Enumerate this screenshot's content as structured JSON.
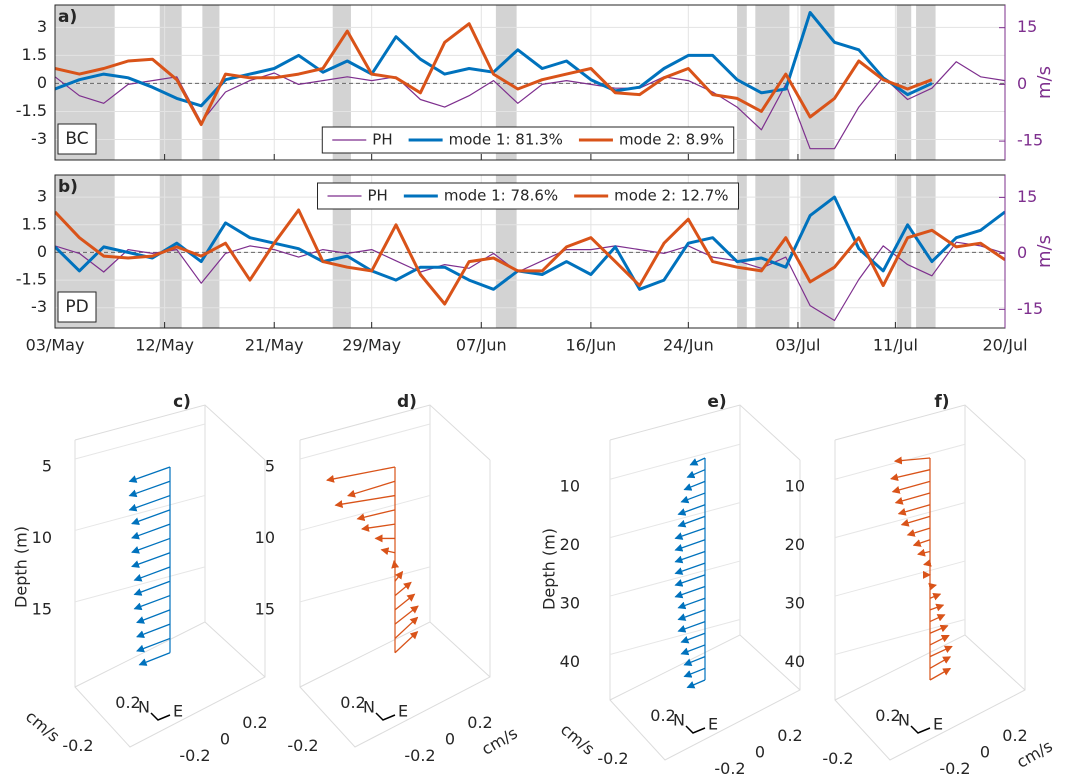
{
  "chart_data": [
    {
      "type": "line",
      "panel_label": "a)",
      "site": "BC",
      "xtick_labels": false,
      "legend": "lower center",
      "grid": true,
      "xlim": [
        0,
        78
      ],
      "xticks": [
        0,
        9,
        18,
        26,
        35,
        44,
        52,
        61,
        69,
        78
      ],
      "ylim": [
        -4.1,
        4.2
      ],
      "yticks": [
        -3,
        -1.5,
        0,
        1.5,
        3
      ],
      "y2lim": [
        -20,
        21
      ],
      "y2ticks": [
        -15,
        0,
        15
      ],
      "y2label": "m/s",
      "shaded_periods": [
        [
          0,
          4.9
        ],
        [
          8.6,
          10.4
        ],
        [
          12.1,
          13.5
        ],
        [
          22.8,
          24.3
        ],
        [
          36.2,
          37.9
        ],
        [
          56,
          56.8
        ],
        [
          57.5,
          60.3
        ],
        [
          61.2,
          64
        ],
        [
          69.1,
          70.3
        ],
        [
          70.7,
          72.3
        ]
      ],
      "x": [
        0,
        2,
        4,
        6,
        8,
        10,
        12,
        14,
        16,
        18,
        20,
        22,
        24,
        26,
        28,
        30,
        32,
        34,
        36,
        38,
        40,
        42,
        44,
        46,
        48,
        50,
        52,
        54,
        56,
        58,
        60,
        62,
        64,
        66,
        68,
        70,
        72,
        74,
        76,
        78
      ],
      "series": [
        {
          "name": "PH",
          "color": "#7e2f8e",
          "axis": "y2",
          "width": 1.2,
          "values": [
            2,
            -3,
            -5,
            0,
            1,
            2,
            -10,
            -2,
            1,
            3,
            0,
            1,
            2,
            1,
            2,
            -4,
            -6,
            -3,
            1,
            -5,
            0,
            1,
            0,
            -1,
            -1,
            2,
            1,
            -2,
            -6,
            -12,
            0,
            -17,
            -17,
            -6,
            2,
            -4,
            -1,
            6,
            2,
            1
          ]
        },
        {
          "name": "mode 1: 81.3%",
          "color": "#0072bd",
          "width": 3,
          "values": [
            -0.3,
            0.2,
            0.5,
            0.3,
            -0.2,
            -0.8,
            -1.2,
            0.2,
            0.5,
            0.8,
            1.5,
            0.6,
            1.2,
            0.5,
            2.5,
            1.3,
            0.5,
            0.8,
            0.6,
            1.8,
            0.8,
            1.2,
            0.2,
            -0.4,
            -0.2,
            0.8,
            1.5,
            1.5,
            0.2,
            -0.5,
            -0.3,
            3.8,
            2.2,
            1.8,
            0.3,
            -0.6,
            0,
            null,
            null,
            null
          ]
        },
        {
          "name": "mode 2: 8.9%",
          "color": "#d95319",
          "width": 3,
          "values": [
            0.8,
            0.5,
            0.8,
            1.2,
            1.3,
            0.2,
            -2.2,
            0.5,
            0.3,
            0.3,
            0.5,
            0.8,
            2.8,
            0.5,
            0.3,
            -0.5,
            2.2,
            3.2,
            0.5,
            -0.3,
            0.2,
            0.5,
            0.8,
            -0.5,
            -0.6,
            0.3,
            0.8,
            -0.6,
            -0.8,
            -1.5,
            0.5,
            -1.8,
            -0.8,
            1.2,
            0.2,
            -0.3,
            0.2,
            null,
            null,
            null
          ]
        }
      ]
    },
    {
      "type": "line",
      "panel_label": "b)",
      "site": "PD",
      "xtick_labels": true,
      "legend": "upper center",
      "grid": true,
      "xlim": [
        0,
        78
      ],
      "xticks": [
        {
          "value": 0,
          "label": "03/May"
        },
        {
          "value": 9,
          "label": "12/May"
        },
        {
          "value": 18,
          "label": "21/May"
        },
        {
          "value": 26,
          "label": "29/May"
        },
        {
          "value": 35,
          "label": "07/Jun"
        },
        {
          "value": 44,
          "label": "16/Jun"
        },
        {
          "value": 52,
          "label": "24/Jun"
        },
        {
          "value": 61,
          "label": "03/Jul"
        },
        {
          "value": 69,
          "label": "11/Jul"
        },
        {
          "value": 78,
          "label": "20/Jul"
        }
      ],
      "ylim": [
        -4.1,
        4.2
      ],
      "yticks": [
        -3,
        -1.5,
        0,
        1.5,
        3
      ],
      "y2lim": [
        -20,
        21
      ],
      "y2ticks": [
        -15,
        0,
        15
      ],
      "y2label": "m/s",
      "shaded_periods": [
        [
          0,
          4.9
        ],
        [
          8.6,
          10.4
        ],
        [
          12.1,
          13.5
        ],
        [
          22.8,
          24.3
        ],
        [
          36.2,
          37.9
        ],
        [
          56,
          56.8
        ],
        [
          57.5,
          60.3
        ],
        [
          61.2,
          64
        ],
        [
          69.1,
          70.3
        ],
        [
          70.7,
          72.3
        ]
      ],
      "x": [
        0,
        2,
        4,
        6,
        8,
        10,
        12,
        14,
        16,
        18,
        20,
        22,
        24,
        26,
        28,
        30,
        32,
        34,
        36,
        38,
        40,
        42,
        44,
        46,
        48,
        50,
        52,
        54,
        56,
        58,
        60,
        62,
        64,
        66,
        68,
        70,
        72,
        74,
        76,
        78
      ],
      "series": [
        {
          "name": "PH",
          "color": "#7e2f8e",
          "axis": "y2",
          "width": 1.2,
          "values": [
            2,
            0,
            -5,
            1,
            0,
            1,
            -8,
            0,
            2,
            1,
            -1,
            1,
            0,
            1,
            -2,
            -5,
            -3,
            -4,
            0,
            -5,
            -2,
            1,
            1,
            2,
            1,
            0,
            2,
            -1,
            -2,
            -4,
            -1,
            -14,
            -18,
            -7,
            2,
            -3,
            -6,
            3,
            2,
            0
          ]
        },
        {
          "name": "mode 1: 78.6%",
          "color": "#0072bd",
          "width": 3,
          "values": [
            0.3,
            -1,
            0.3,
            0,
            -0.3,
            0.5,
            -0.5,
            1.6,
            0.8,
            0.5,
            0.2,
            -0.5,
            -0.2,
            -1,
            -1.5,
            -0.8,
            -0.8,
            -1.5,
            -2,
            -1,
            -1.2,
            -0.5,
            -1.2,
            0.3,
            -2,
            -1.5,
            0.5,
            0.8,
            -0.5,
            -0.3,
            -0.8,
            2,
            3,
            0.2,
            -1,
            1.5,
            -0.5,
            0.8,
            1.2,
            2.2
          ]
        },
        {
          "name": "mode 2: 12.7%",
          "color": "#d95319",
          "width": 3,
          "values": [
            2.2,
            0.8,
            -0.2,
            -0.3,
            -0.2,
            0.3,
            -0.2,
            0.5,
            -1.5,
            0.5,
            2.3,
            -0.5,
            -0.8,
            -1,
            1.5,
            -1.2,
            -2.8,
            -0.5,
            -0.3,
            -1,
            -1,
            0.3,
            0.8,
            -0.5,
            -1.8,
            0.5,
            1.8,
            -0.5,
            -0.8,
            -1,
            0.8,
            -1.6,
            -0.8,
            0.8,
            -1.8,
            0.8,
            1.2,
            0.3,
            0.5,
            -0.4
          ]
        }
      ]
    },
    {
      "type": "quiver3d",
      "title": "c)",
      "color": "#0072bd",
      "zlabel": "Depth (m)",
      "nlabel": "cm/s",
      "zlim": [
        5,
        19
      ],
      "zticks": [
        5,
        10,
        15
      ],
      "eticks": [
        -0.2,
        0,
        0.2
      ],
      "nticks": [
        -0.2,
        0.2
      ],
      "compass": {
        "north": "N",
        "east": "E"
      },
      "depth": [
        5,
        6,
        7,
        8,
        9,
        10,
        11,
        12,
        13,
        14,
        15,
        16,
        17,
        18
      ],
      "east": [
        -0.18,
        -0.18,
        -0.18,
        -0.17,
        -0.17,
        -0.17,
        -0.17,
        -0.16,
        -0.16,
        -0.16,
        -0.15,
        -0.15,
        -0.15,
        -0.14
      ],
      "north": [
        -0.03,
        -0.03,
        -0.03,
        -0.03,
        -0.03,
        -0.03,
        -0.03,
        -0.03,
        -0.03,
        -0.03,
        -0.03,
        -0.03,
        -0.03,
        -0.03
      ]
    },
    {
      "type": "quiver3d",
      "title": "d)",
      "color": "#d95319",
      "elabel": "cm/s",
      "zlim": [
        5,
        19
      ],
      "zticks": [
        5,
        10,
        15
      ],
      "eticks": [
        -0.2,
        0,
        0.2
      ],
      "nticks": [
        -0.2,
        0.2
      ],
      "compass": {
        "north": "N",
        "east": "E"
      },
      "depth": [
        5,
        6,
        7,
        8,
        9,
        10,
        11,
        12,
        13,
        14,
        15,
        16,
        17,
        18
      ],
      "east": [
        -0.26,
        -0.2,
        -0.22,
        -0.15,
        -0.12,
        -0.06,
        -0.03,
        0.02,
        0.06,
        0.1,
        0.12,
        0.14,
        0.15,
        0.15
      ],
      "north": [
        0.02,
        -0.02,
        0.03,
        0,
        0.02,
        0.03,
        0.04,
        0.04,
        0.05,
        0.06,
        0.07,
        0.08,
        0.1,
        0.1
      ]
    },
    {
      "type": "quiver3d",
      "title": "e)",
      "color": "#0072bd",
      "zlabel": "Depth (m)",
      "nlabel": "cm/s",
      "zlim": [
        5,
        43
      ],
      "zticks": [
        10,
        20,
        30,
        40
      ],
      "eticks": [
        -0.2,
        0,
        0.2
      ],
      "nticks": [
        -0.2,
        0.2
      ],
      "compass": {
        "north": "N",
        "east": "E"
      },
      "depth": [
        5,
        7,
        9,
        11,
        13,
        15,
        17,
        19,
        21,
        23,
        25,
        27,
        29,
        31,
        33,
        35,
        37,
        39,
        41,
        43
      ],
      "east": [
        -0.06,
        -0.07,
        -0.08,
        -0.09,
        -0.1,
        -0.1,
        -0.11,
        -0.11,
        -0.11,
        -0.11,
        -0.11,
        -0.11,
        -0.1,
        -0.1,
        -0.1,
        -0.09,
        -0.09,
        -0.08,
        -0.08,
        -0.07
      ],
      "north": [
        -0.02,
        -0.02,
        -0.02,
        -0.02,
        -0.02,
        -0.02,
        -0.02,
        -0.02,
        -0.02,
        -0.02,
        -0.02,
        -0.02,
        -0.02,
        -0.02,
        -0.02,
        -0.02,
        -0.02,
        -0.02,
        -0.02,
        -0.02
      ]
    },
    {
      "type": "quiver3d",
      "title": "f)",
      "color": "#d95319",
      "elabel": "cm/s",
      "zlim": [
        5,
        43
      ],
      "zticks": [
        10,
        20,
        30,
        40
      ],
      "eticks": [
        -0.2,
        0,
        0.2
      ],
      "nticks": [
        -0.2,
        0.2
      ],
      "compass": {
        "north": "N",
        "east": "E"
      },
      "depth": [
        5,
        7,
        9,
        11,
        13,
        15,
        17,
        19,
        21,
        23,
        25,
        27,
        29,
        31,
        33,
        35,
        37,
        39,
        41,
        43
      ],
      "east": [
        -0.1,
        -0.13,
        -0.13,
        -0.12,
        -0.11,
        -0.1,
        -0.08,
        -0.06,
        -0.04,
        -0.02,
        0,
        0.02,
        0.04,
        0.05,
        0.06,
        0.07,
        0.08,
        0.09,
        0.09,
        0.09
      ],
      "north": [
        0.03,
        0,
        -0.01,
        -0.01,
        -0.01,
        -0.01,
        -0.01,
        -0.01,
        0,
        0,
        0,
        0,
        0.01,
        0.01,
        0.02,
        0.02,
        0.03,
        0.03,
        0.04,
        0.04
      ]
    }
  ]
}
